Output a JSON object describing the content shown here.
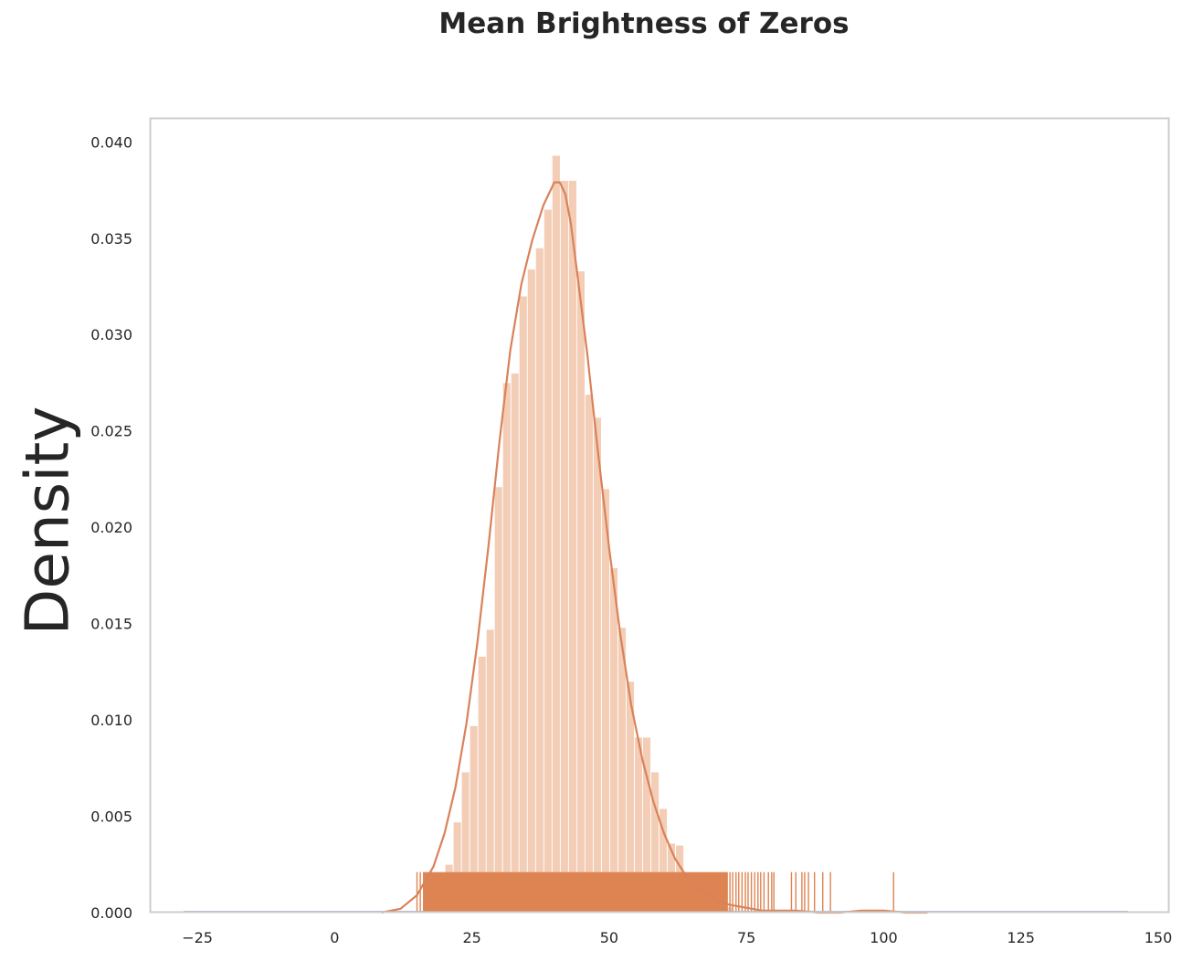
{
  "chart_data": {
    "type": "histogram",
    "title": "Mean Brightness of Zeros",
    "xlabel": "",
    "ylabel": "Density",
    "xlim": [
      -33.5,
      152
    ],
    "ylim": [
      0,
      0.0412
    ],
    "x_ticks": [
      -25,
      0,
      25,
      50,
      75,
      100,
      125,
      150
    ],
    "y_ticks": [
      0.0,
      0.005,
      0.01,
      0.015,
      0.02,
      0.025,
      0.03,
      0.035,
      0.04
    ],
    "grid": false,
    "colors": {
      "hist": "#f3cdb6",
      "kde": "#d9825a",
      "rug": "#dd8452",
      "baseline": "#4c72b0",
      "spine": "#cccccc"
    },
    "histogram": {
      "bin_width": 1.485,
      "bins": [
        {
          "x0": 18.6,
          "density": 0.0014
        },
        {
          "x0": 20.1,
          "density": 0.0025
        },
        {
          "x0": 21.6,
          "density": 0.0047
        },
        {
          "x0": 23.1,
          "density": 0.0073
        },
        {
          "x0": 24.6,
          "density": 0.0097
        },
        {
          "x0": 26.1,
          "density": 0.0133
        },
        {
          "x0": 27.6,
          "density": 0.0147
        },
        {
          "x0": 29.1,
          "density": 0.0221
        },
        {
          "x0": 30.6,
          "density": 0.0275
        },
        {
          "x0": 32.1,
          "density": 0.028
        },
        {
          "x0": 33.6,
          "density": 0.032
        },
        {
          "x0": 35.1,
          "density": 0.0334
        },
        {
          "x0": 36.6,
          "density": 0.0345
        },
        {
          "x0": 38.1,
          "density": 0.0365
        },
        {
          "x0": 39.6,
          "density": 0.0393
        },
        {
          "x0": 41.1,
          "density": 0.038
        },
        {
          "x0": 42.6,
          "density": 0.038
        },
        {
          "x0": 44.1,
          "density": 0.0333
        },
        {
          "x0": 45.6,
          "density": 0.0269
        },
        {
          "x0": 47.1,
          "density": 0.0257
        },
        {
          "x0": 48.6,
          "density": 0.022
        },
        {
          "x0": 50.1,
          "density": 0.0179
        },
        {
          "x0": 51.6,
          "density": 0.0148
        },
        {
          "x0": 53.1,
          "density": 0.012
        },
        {
          "x0": 54.6,
          "density": 0.0091
        },
        {
          "x0": 56.1,
          "density": 0.0091
        },
        {
          "x0": 57.6,
          "density": 0.0073
        },
        {
          "x0": 59.1,
          "density": 0.0054
        },
        {
          "x0": 60.6,
          "density": 0.0036
        },
        {
          "x0": 62.1,
          "density": 0.0035
        },
        {
          "x0": 63.6,
          "density": 0.0021
        },
        {
          "x0": 65.1,
          "density": 0.0013
        },
        {
          "x0": 66.6,
          "density": 0.001
        },
        {
          "x0": 68.1,
          "density": 0.0006
        },
        {
          "x0": 69.6,
          "density": 0.0004
        },
        {
          "x0": 71.1,
          "density": 0.0003
        }
      ]
    },
    "kde": {
      "x": [
        8.5,
        12,
        15,
        18,
        20,
        22,
        24,
        26,
        28,
        30,
        32,
        34,
        36,
        38,
        40,
        41,
        42,
        43,
        44,
        46,
        48,
        50,
        52,
        54,
        56,
        58,
        60,
        62,
        64,
        66,
        68,
        70,
        72,
        74,
        76,
        78,
        80,
        84,
        88,
        92,
        96,
        100,
        104,
        108
      ],
      "y": [
        0.0,
        0.0002,
        0.0009,
        0.0024,
        0.0041,
        0.0065,
        0.0098,
        0.014,
        0.019,
        0.0244,
        0.0292,
        0.0326,
        0.0349,
        0.0367,
        0.0379,
        0.0379,
        0.0373,
        0.0358,
        0.0336,
        0.029,
        0.0238,
        0.0189,
        0.0145,
        0.0108,
        0.008,
        0.0058,
        0.0041,
        0.0028,
        0.0019,
        0.0013,
        0.0009,
        0.0006,
        0.0004,
        0.0003,
        0.0002,
        0.0001,
        0.0001,
        0.0001,
        0.0,
        0.0,
        0.0001,
        0.0001,
        0.0,
        0.0
      ]
    },
    "rug": {
      "height": 0.0021,
      "dense_range": [
        16.2,
        71.5
      ],
      "values": [
        15.0,
        15.6,
        16.2,
        71.5,
        72.0,
        72.5,
        73.1,
        73.6,
        74.2,
        74.8,
        75.3,
        75.9,
        76.5,
        77.1,
        77.6,
        78.2,
        79.0,
        79.6,
        80.0,
        83.2,
        84.0,
        85.1,
        85.6,
        86.3,
        87.4,
        88.9,
        90.3,
        101.8
      ]
    },
    "baseline": {
      "x_range": [
        -27.5,
        144.5
      ]
    }
  }
}
